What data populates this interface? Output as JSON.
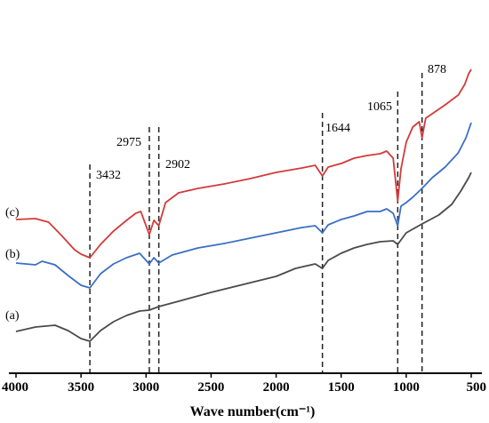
{
  "chart_data": {
    "type": "line",
    "xlabel": "Wave number(cm⁻¹)",
    "ylabel": "",
    "xlim": [
      4000,
      500
    ],
    "x_reversed": true,
    "y_ticks_shown": false,
    "grid": false,
    "x_ticks": [
      4000,
      3500,
      3000,
      2500,
      2000,
      1500,
      1000,
      500
    ],
    "x_tick_labels": [
      "4000",
      "3500",
      "3000",
      "2500",
      "2000",
      "1500",
      "1000",
      "500"
    ],
    "peak_lines": [
      {
        "x": 3432,
        "label": "3432"
      },
      {
        "x": 2975,
        "label": "2975"
      },
      {
        "x": 2902,
        "label": "2902"
      },
      {
        "x": 1644,
        "label": "1644"
      },
      {
        "x": 1065,
        "label": "1065"
      },
      {
        "x": 878,
        "label": "878"
      }
    ],
    "series": [
      {
        "name": "(a)",
        "color": "#4a4a4a",
        "points": [
          [
            4000,
            373
          ],
          [
            3850,
            368
          ],
          [
            3700,
            366
          ],
          [
            3600,
            372
          ],
          [
            3500,
            381
          ],
          [
            3432,
            384
          ],
          [
            3350,
            372
          ],
          [
            3250,
            362
          ],
          [
            3150,
            355
          ],
          [
            3050,
            350
          ],
          [
            2975,
            349
          ],
          [
            2902,
            345
          ],
          [
            2750,
            339
          ],
          [
            2500,
            329
          ],
          [
            2250,
            320
          ],
          [
            2000,
            311
          ],
          [
            1850,
            302
          ],
          [
            1700,
            297
          ],
          [
            1644,
            302
          ],
          [
            1600,
            293
          ],
          [
            1500,
            285
          ],
          [
            1400,
            279
          ],
          [
            1300,
            275
          ],
          [
            1200,
            272
          ],
          [
            1100,
            271
          ],
          [
            1065,
            275
          ],
          [
            1000,
            262
          ],
          [
            878,
            252
          ],
          [
            750,
            242
          ],
          [
            650,
            230
          ],
          [
            580,
            215
          ],
          [
            520,
            200
          ],
          [
            500,
            194
          ]
        ]
      },
      {
        "name": "(b)",
        "color": "#3b6fc4",
        "points": [
          [
            4000,
            296
          ],
          [
            3850,
            298
          ],
          [
            3800,
            294
          ],
          [
            3700,
            298
          ],
          [
            3600,
            310
          ],
          [
            3500,
            321
          ],
          [
            3432,
            324
          ],
          [
            3350,
            308
          ],
          [
            3250,
            297
          ],
          [
            3150,
            290
          ],
          [
            3050,
            285
          ],
          [
            2975,
            297
          ],
          [
            2940,
            290
          ],
          [
            2902,
            296
          ],
          [
            2800,
            287
          ],
          [
            2600,
            279
          ],
          [
            2400,
            274
          ],
          [
            2200,
            268
          ],
          [
            2000,
            262
          ],
          [
            1800,
            256
          ],
          [
            1700,
            254
          ],
          [
            1644,
            262
          ],
          [
            1600,
            253
          ],
          [
            1500,
            247
          ],
          [
            1400,
            243
          ],
          [
            1300,
            238
          ],
          [
            1200,
            238
          ],
          [
            1150,
            235
          ],
          [
            1100,
            240
          ],
          [
            1065,
            254
          ],
          [
            1040,
            232
          ],
          [
            1000,
            228
          ],
          [
            950,
            222
          ],
          [
            878,
            212
          ],
          [
            800,
            200
          ],
          [
            700,
            188
          ],
          [
            600,
            172
          ],
          [
            540,
            155
          ],
          [
            500,
            138
          ]
        ]
      },
      {
        "name": "(c)",
        "color": "#d43a3a",
        "points": [
          [
            4000,
            247
          ],
          [
            3850,
            246
          ],
          [
            3750,
            250
          ],
          [
            3650,
            265
          ],
          [
            3550,
            281
          ],
          [
            3500,
            286
          ],
          [
            3432,
            290
          ],
          [
            3350,
            275
          ],
          [
            3250,
            260
          ],
          [
            3150,
            248
          ],
          [
            3080,
            240
          ],
          [
            3040,
            238
          ],
          [
            2975,
            264
          ],
          [
            2940,
            248
          ],
          [
            2902,
            254
          ],
          [
            2850,
            228
          ],
          [
            2750,
            217
          ],
          [
            2600,
            212
          ],
          [
            2400,
            207
          ],
          [
            2200,
            201
          ],
          [
            2000,
            194
          ],
          [
            1800,
            189
          ],
          [
            1700,
            186
          ],
          [
            1644,
            198
          ],
          [
            1600,
            188
          ],
          [
            1500,
            184
          ],
          [
            1400,
            178
          ],
          [
            1300,
            175
          ],
          [
            1200,
            173
          ],
          [
            1150,
            170
          ],
          [
            1100,
            178
          ],
          [
            1065,
            226
          ],
          [
            1040,
            190
          ],
          [
            1000,
            160
          ],
          [
            950,
            143
          ],
          [
            900,
            137
          ],
          [
            878,
            155
          ],
          [
            850,
            133
          ],
          [
            800,
            128
          ],
          [
            700,
            118
          ],
          [
            600,
            107
          ],
          [
            550,
            95
          ],
          [
            520,
            83
          ],
          [
            500,
            78
          ]
        ]
      }
    ]
  }
}
